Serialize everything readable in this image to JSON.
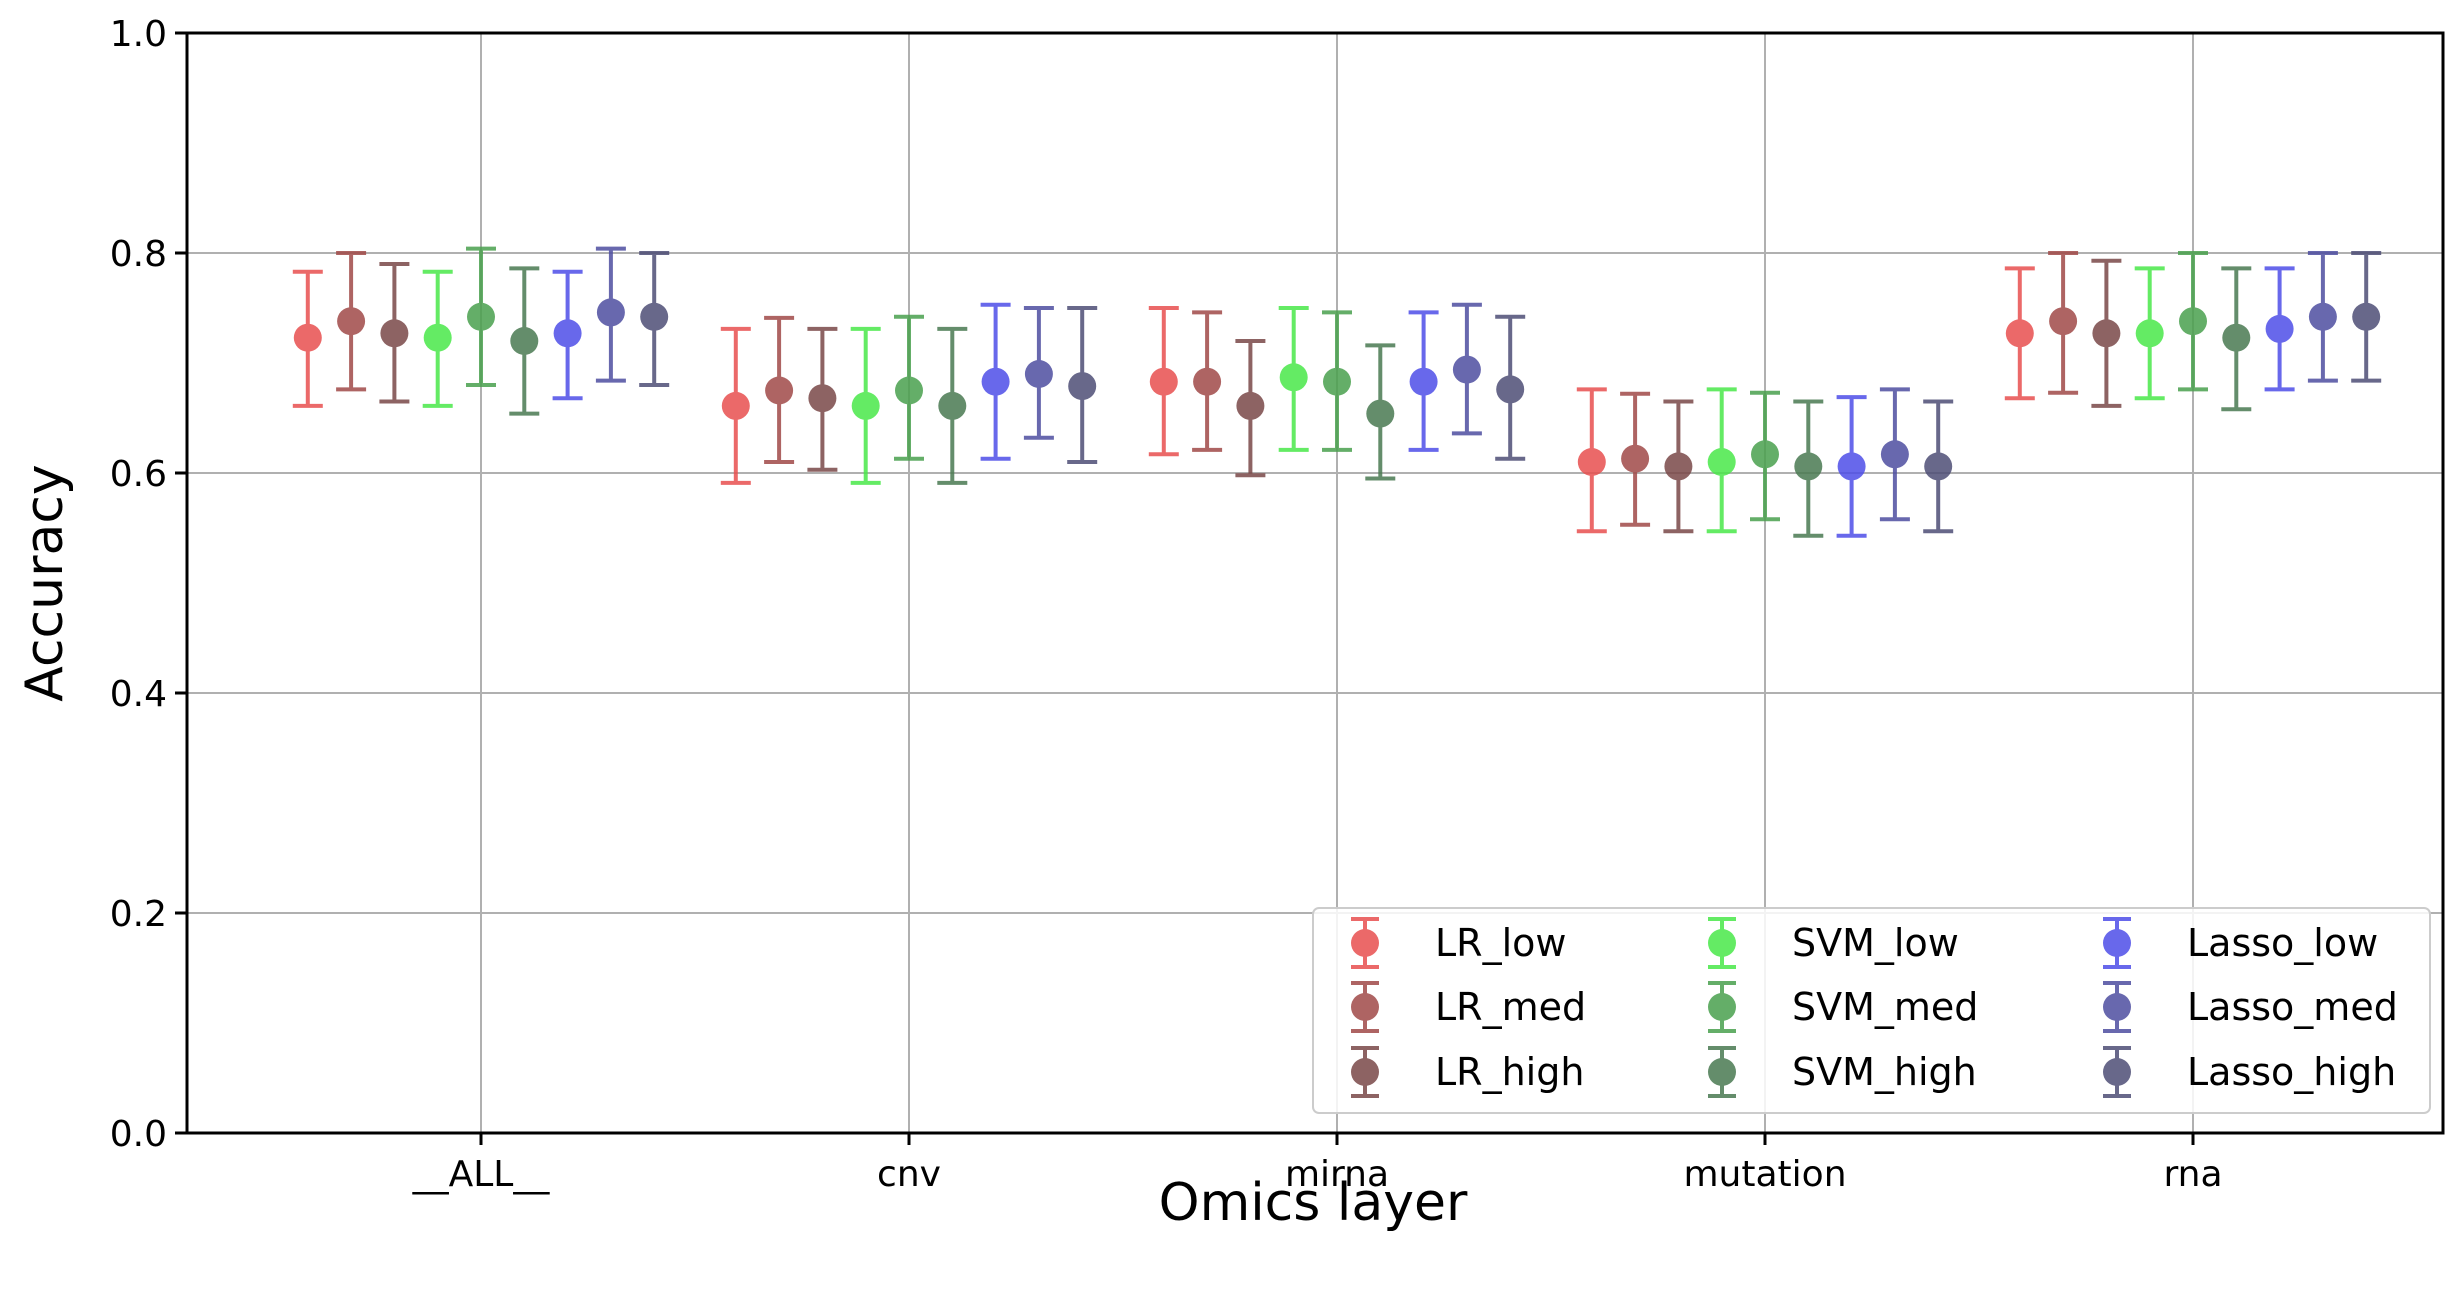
{
  "chart_data": {
    "type": "scatter",
    "title": "",
    "xlabel": "Omics layer",
    "ylabel": "Accuracy",
    "categories": [
      "__ALL__",
      "cnv",
      "mirna",
      "mutation",
      "rna"
    ],
    "ylim": [
      0.0,
      1.0
    ],
    "yticks": [
      0.0,
      0.2,
      0.4,
      0.6,
      0.8,
      1.0
    ],
    "ytick_labels": [
      "0.0",
      "0.2",
      "0.4",
      "0.6",
      "0.8",
      "1.0"
    ],
    "grid": true,
    "legend_position": "lower-right",
    "series": [
      {
        "name": "LR_low",
        "color": "#e8504f",
        "values": [
          0.723,
          0.661,
          0.683,
          0.61,
          0.727
        ],
        "lower": [
          0.661,
          0.591,
          0.617,
          0.547,
          0.668
        ],
        "upper": [
          0.783,
          0.731,
          0.75,
          0.676,
          0.786
        ]
      },
      {
        "name": "LR_med",
        "color": "#a14a48",
        "values": [
          0.738,
          0.675,
          0.683,
          0.613,
          0.738
        ],
        "lower": [
          0.676,
          0.61,
          0.621,
          0.553,
          0.673
        ],
        "upper": [
          0.8,
          0.741,
          0.746,
          0.672,
          0.8
        ]
      },
      {
        "name": "LR_high",
        "color": "#7a4848",
        "values": [
          0.727,
          0.668,
          0.661,
          0.606,
          0.727
        ],
        "lower": [
          0.665,
          0.603,
          0.598,
          0.547,
          0.661
        ],
        "upper": [
          0.79,
          0.731,
          0.72,
          0.665,
          0.793
        ]
      },
      {
        "name": "SVM_low",
        "color": "#4ae84a",
        "values": [
          0.723,
          0.661,
          0.687,
          0.61,
          0.727
        ],
        "lower": [
          0.661,
          0.591,
          0.621,
          0.547,
          0.668
        ],
        "upper": [
          0.783,
          0.731,
          0.75,
          0.676,
          0.786
        ]
      },
      {
        "name": "SVM_med",
        "color": "#4aa14e",
        "values": [
          0.742,
          0.675,
          0.683,
          0.617,
          0.738
        ],
        "lower": [
          0.68,
          0.613,
          0.621,
          0.558,
          0.676
        ],
        "upper": [
          0.804,
          0.742,
          0.746,
          0.673,
          0.8
        ]
      },
      {
        "name": "SVM_high",
        "color": "#4a7a52",
        "values": [
          0.72,
          0.661,
          0.654,
          0.606,
          0.723
        ],
        "lower": [
          0.654,
          0.591,
          0.595,
          0.543,
          0.658
        ],
        "upper": [
          0.786,
          0.731,
          0.716,
          0.665,
          0.786
        ]
      },
      {
        "name": "Lasso_low",
        "color": "#4e4ee8",
        "values": [
          0.727,
          0.683,
          0.683,
          0.606,
          0.731
        ],
        "lower": [
          0.668,
          0.613,
          0.621,
          0.543,
          0.676
        ],
        "upper": [
          0.783,
          0.753,
          0.746,
          0.669,
          0.786
        ]
      },
      {
        "name": "Lasso_med",
        "color": "#4e4ea1",
        "values": [
          0.746,
          0.69,
          0.694,
          0.617,
          0.742
        ],
        "lower": [
          0.684,
          0.632,
          0.636,
          0.558,
          0.684
        ],
        "upper": [
          0.804,
          0.75,
          0.753,
          0.676,
          0.8
        ]
      },
      {
        "name": "Lasso_high",
        "color": "#4e4e76",
        "values": [
          0.742,
          0.679,
          0.676,
          0.606,
          0.742
        ],
        "lower": [
          0.68,
          0.61,
          0.613,
          0.547,
          0.684
        ],
        "upper": [
          0.8,
          0.75,
          0.742,
          0.665,
          0.8
        ]
      }
    ]
  }
}
